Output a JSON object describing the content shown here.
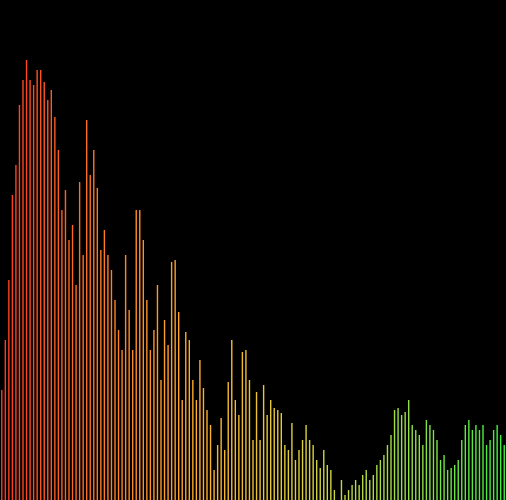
{
  "chart_data": {
    "type": "bar",
    "title": "",
    "xlabel": "",
    "ylabel": "",
    "ylim": [
      0,
      440
    ],
    "grid": false,
    "legend": "none",
    "background": "#000000",
    "color_gradient": [
      "#ff3a1e",
      "#ff7a24",
      "#ffb02a",
      "#dcd23a",
      "#9ade46",
      "#3cf03c"
    ],
    "values": [
      110,
      160,
      220,
      305,
      335,
      395,
      420,
      440,
      420,
      415,
      430,
      430,
      418,
      400,
      410,
      383,
      350,
      290,
      310,
      260,
      275,
      215,
      318,
      245,
      380,
      325,
      350,
      312,
      250,
      270,
      245,
      230,
      200,
      170,
      150,
      245,
      190,
      150,
      290,
      290,
      260,
      200,
      150,
      170,
      215,
      120,
      180,
      155,
      238,
      240,
      188,
      100,
      168,
      160,
      120,
      100,
      140,
      112,
      90,
      75,
      30,
      55,
      82,
      50,
      118,
      160,
      100,
      85,
      148,
      150,
      120,
      60,
      108,
      60,
      115,
      85,
      100,
      92,
      90,
      87,
      55,
      50,
      77,
      40,
      50,
      60,
      75,
      60,
      55,
      40,
      32,
      50,
      35,
      30,
      10,
      0,
      20,
      5,
      10,
      15,
      20,
      15,
      25,
      30,
      20,
      25,
      35,
      40,
      45,
      55,
      65,
      90,
      92,
      85,
      88,
      100,
      75,
      70,
      65,
      55,
      80,
      75,
      70,
      60,
      40,
      45,
      30,
      32,
      35,
      40,
      60,
      75,
      80,
      70,
      75,
      70,
      75,
      55,
      60,
      70,
      75,
      65,
      55
    ]
  }
}
